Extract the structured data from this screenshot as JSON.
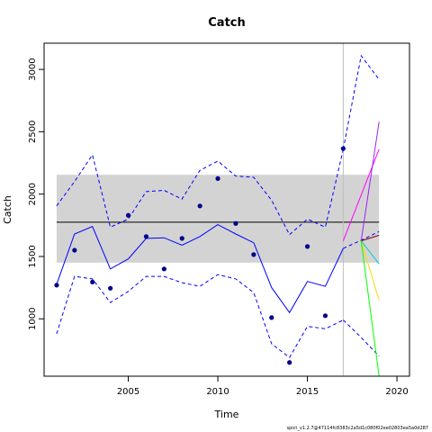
{
  "chart_data": {
    "type": "line",
    "title": "Catch",
    "xlabel": "Time",
    "ylabel": "Catch",
    "xlim": [
      2000.3,
      2020.7
    ],
    "ylim": [
      540,
      3210
    ],
    "x_ticks": [
      2005,
      2010,
      2015,
      2020
    ],
    "y_ticks": [
      1000,
      1500,
      2000,
      2500,
      3000
    ],
    "grid": false,
    "reference_band": {
      "low": 1450,
      "high": 2155,
      "color": "#d3d3d3"
    },
    "reference_line": {
      "y": 1775,
      "color": "#000000"
    },
    "last_observation_line": {
      "x": 2017,
      "color": "#bebebe"
    },
    "observed": {
      "color": "#00008b",
      "points": [
        [
          2001,
          1270
        ],
        [
          2002,
          1550
        ],
        [
          2003,
          1295
        ],
        [
          2004,
          1245
        ],
        [
          2005,
          1830
        ],
        [
          2006,
          1660
        ],
        [
          2007,
          1400
        ],
        [
          2008,
          1645
        ],
        [
          2009,
          1905
        ],
        [
          2010,
          2125
        ],
        [
          2011,
          1765
        ],
        [
          2012,
          1515
        ],
        [
          2013,
          1010
        ],
        [
          2014,
          650
        ],
        [
          2015,
          1580
        ],
        [
          2016,
          1025
        ],
        [
          2017,
          2365
        ]
      ]
    },
    "fitted": {
      "color": "#0000ff",
      "x": [
        2001,
        2002,
        2003,
        2004,
        2005,
        2006,
        2007,
        2008,
        2009,
        2010,
        2011,
        2012,
        2013,
        2014,
        2015,
        2016,
        2017
      ],
      "mean": [
        1275,
        1680,
        1740,
        1400,
        1480,
        1645,
        1650,
        1590,
        1660,
        1755,
        1680,
        1610,
        1250,
        1050,
        1300,
        1260,
        1565
      ],
      "lower": [
        880,
        1340,
        1320,
        1130,
        1220,
        1340,
        1340,
        1290,
        1260,
        1355,
        1320,
        1210,
        800,
        690,
        940,
        920,
        990
      ],
      "upper": [
        1905,
        2100,
        2315,
        1735,
        1800,
        2020,
        2030,
        1960,
        2190,
        2265,
        2145,
        2135,
        1950,
        1675,
        1800,
        1735,
        2360
      ]
    },
    "forecast": {
      "x": [
        2017,
        2018,
        2019
      ],
      "median": [
        1565,
        1630,
        1700
      ],
      "lower": [
        990,
        850,
        700
      ],
      "upper": [
        2360,
        3110,
        2920
      ],
      "median_color": "#0000ff",
      "interval_color": "#0000ff"
    },
    "scenarios": [
      {
        "color": "#ff00ff",
        "values": [
          [
            2017,
            1625
          ],
          [
            2019,
            2360
          ]
        ]
      },
      {
        "color": "#a020f0",
        "values": [
          [
            2018,
            1625
          ],
          [
            2019,
            2580
          ]
        ]
      },
      {
        "color": "#8b0000",
        "values": [
          [
            2018,
            1625
          ],
          [
            2019,
            1670
          ]
        ]
      },
      {
        "color": "#ffd700",
        "values": [
          [
            2018,
            1625
          ],
          [
            2019,
            1150
          ]
        ]
      },
      {
        "color": "#00ced1",
        "values": [
          [
            2018,
            1625
          ],
          [
            2019,
            1440
          ]
        ]
      },
      {
        "color": "#00ff00",
        "values": [
          [
            2018,
            1625
          ],
          [
            2019,
            540
          ]
        ]
      }
    ]
  },
  "footer": "spict_v1.2.7@47114fc8383c2a5d1c080f02ee02803ea5a0d287"
}
